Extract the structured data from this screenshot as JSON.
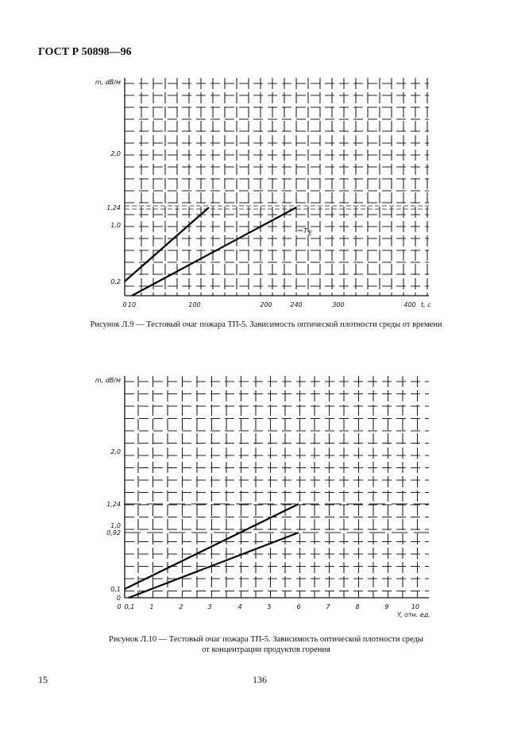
{
  "header": {
    "doc_code": "ГОСТ Р 50898—96"
  },
  "figures": [
    {
      "caption": "Рисунок Л.9 — Тестовый очаг пожара ТП-5. Зависимость оптической плотности среды от времени",
      "ylabel": "m, dB/м",
      "xlabel": "t, c",
      "curve_label": "T",
      "curve_label_sub": "E"
    },
    {
      "caption_line1": "Рисунок Л.10 — Тестовый очаг пожара ТП-5. Зависимость оптической плотности среды",
      "caption_line2": "от концентрации продуктов горения",
      "ylabel": "m, dB/м",
      "xlabel": "Y, отн. ед."
    }
  ],
  "chart_data": [
    {
      "type": "line",
      "xlabel": "t, c",
      "ylabel": "m, dB/м",
      "x_ticks": [
        {
          "value": 0,
          "label": "0"
        },
        {
          "value": 10,
          "label": "10"
        },
        {
          "value": 100,
          "label": "100"
        },
        {
          "value": 200,
          "label": "200"
        },
        {
          "value": 240,
          "label": "240"
        },
        {
          "value": 300,
          "label": "300"
        },
        {
          "value": 400,
          "label": "400"
        }
      ],
      "y_ticks": [
        {
          "value": 0.2,
          "label": "0,2"
        },
        {
          "value": 1.0,
          "label": "1,0"
        },
        {
          "value": 1.24,
          "label": "1,24"
        },
        {
          "value": 2.0,
          "label": "2,0"
        }
      ],
      "xlim": [
        0,
        420
      ],
      "ylim": [
        0,
        3.1
      ],
      "series": [
        {
          "x": [
            0,
            120
          ],
          "y": [
            0.2,
            1.24
          ]
        },
        {
          "x": [
            10,
            240
          ],
          "y": [
            0.0,
            1.24
          ]
        }
      ]
    },
    {
      "type": "line",
      "xlabel": "Y, отн. ед.",
      "ylabel": "m, dB/м",
      "x_ticks": [
        {
          "value": 0,
          "label": "0"
        },
        {
          "value": 0.1,
          "label": "0,1"
        },
        {
          "value": 1,
          "label": "1"
        },
        {
          "value": 2,
          "label": "2"
        },
        {
          "value": 3,
          "label": "3"
        },
        {
          "value": 4,
          "label": "4"
        },
        {
          "value": 5,
          "label": "5"
        },
        {
          "value": 6,
          "label": "6"
        },
        {
          "value": 7,
          "label": "7"
        },
        {
          "value": 8,
          "label": "8"
        },
        {
          "value": 9,
          "label": "9"
        },
        {
          "value": 10,
          "label": "10"
        }
      ],
      "y_ticks": [
        {
          "value": 0,
          "label": "0"
        },
        {
          "value": 0.1,
          "label": "0,1"
        },
        {
          "value": 0.92,
          "label": "0,92"
        },
        {
          "value": 1.0,
          "label": "1,0"
        },
        {
          "value": 1.24,
          "label": "1,24"
        },
        {
          "value": 2.0,
          "label": "2,0"
        }
      ],
      "xlim": [
        0,
        10.4
      ],
      "ylim": [
        0,
        3.1
      ],
      "series": [
        {
          "x": [
            0,
            6
          ],
          "y": [
            0.1,
            1.24
          ]
        },
        {
          "x": [
            0.1,
            6
          ],
          "y": [
            0.0,
            0.92
          ]
        }
      ]
    }
  ],
  "footer": {
    "page_left": "15",
    "page_number": "136"
  }
}
